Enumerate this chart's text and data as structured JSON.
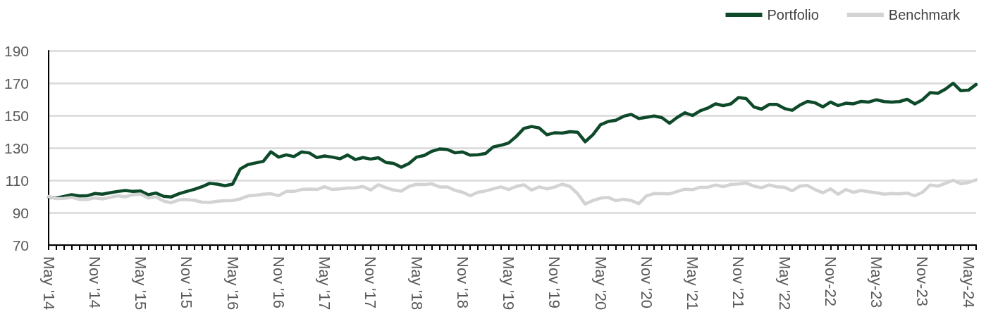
{
  "chart_data": {
    "type": "line",
    "categories": [
      "May '14",
      null,
      null,
      null,
      null,
      null,
      "Nov '14",
      null,
      null,
      null,
      null,
      null,
      "May '15",
      null,
      null,
      null,
      null,
      null,
      "Nov '15",
      null,
      null,
      null,
      null,
      null,
      "May '16",
      null,
      null,
      null,
      null,
      null,
      "Nov '16",
      null,
      null,
      null,
      null,
      null,
      "May '17",
      null,
      null,
      null,
      null,
      null,
      "Nov '17",
      null,
      null,
      null,
      null,
      null,
      "May '18",
      null,
      null,
      null,
      null,
      null,
      "Nov '18",
      null,
      null,
      null,
      null,
      null,
      "May '19",
      null,
      null,
      null,
      null,
      null,
      "Nov '19",
      null,
      null,
      null,
      null,
      null,
      "May '20",
      null,
      null,
      null,
      null,
      null,
      "Nov '20",
      null,
      null,
      null,
      null,
      null,
      "May '21",
      null,
      null,
      null,
      null,
      null,
      "Nov '21",
      null,
      null,
      null,
      null,
      null,
      "May '22",
      null,
      null,
      null,
      null,
      null,
      "Nov-22",
      null,
      null,
      null,
      null,
      null,
      "May-23",
      null,
      null,
      null,
      null,
      null,
      "Nov-23",
      null,
      null,
      null,
      null,
      null,
      "May-24",
      null
    ],
    "series": [
      {
        "name": "Portfolio",
        "color": "#0e4a2a",
        "values": [
          99.7,
          99,
          100,
          101.1,
          100.3,
          100.4,
          101.8,
          101.4,
          102.3,
          103.1,
          103.7,
          103.1,
          103.4,
          101.1,
          102.1,
          100.1,
          99.7,
          101.7,
          103.1,
          104.4,
          106,
          108.1,
          107.6,
          106.6,
          107.6,
          117,
          119.7,
          120.7,
          121.7,
          127.6,
          124.3,
          125.7,
          124.6,
          127.5,
          126.9,
          124,
          125,
          124.3,
          123.3,
          125.6,
          122.8,
          124,
          123.1,
          123.9,
          121,
          120.4,
          118.1,
          120.3,
          124.3,
          125.3,
          127.9,
          129.3,
          129,
          127,
          127.5,
          125.5,
          125.8,
          126.5,
          130.6,
          131.6,
          133,
          137,
          142,
          143.2,
          142.3,
          138.1,
          139.3,
          139.1,
          140,
          139.7,
          133.8,
          138.1,
          144.3,
          146.3,
          147.1,
          149.5,
          150.7,
          148.1,
          148.9,
          149.7,
          148.7,
          145.2,
          148.8,
          151.7,
          150,
          152.9,
          154.6,
          157.2,
          156.1,
          157.2,
          161.1,
          160.4,
          155.3,
          153.9,
          156.8,
          156.8,
          154.3,
          153.2,
          156.4,
          158.7,
          157.8,
          155.3,
          158.3,
          156.1,
          157.6,
          157.2,
          158.7,
          158.3,
          159.7,
          158.6,
          158.3,
          158.6,
          160,
          157.2,
          159.7,
          164.1,
          163.7,
          166.3,
          169.9,
          165.3,
          165.6,
          169.2
        ]
      },
      {
        "name": "Benchmark",
        "color": "#d3d3d3",
        "values": [
          100,
          98.7,
          98.8,
          99.4,
          98.2,
          98.1,
          99.1,
          98.5,
          99.4,
          100.4,
          99.8,
          101.1,
          101.4,
          99,
          99.7,
          97.2,
          96.1,
          97.9,
          98.1,
          97.6,
          96.5,
          96.3,
          97.1,
          97.4,
          97.5,
          98.5,
          100.3,
          100.8,
          101.4,
          101.7,
          100.5,
          103.1,
          103.1,
          104.3,
          104.6,
          104.3,
          106,
          104.3,
          104.7,
          105.2,
          105.3,
          106.2,
          104,
          107.2,
          105.5,
          104,
          103.3,
          106.2,
          107.5,
          107.4,
          107.8,
          105.9,
          105.9,
          103.8,
          102.6,
          100.4,
          102.6,
          103.4,
          104.7,
          105.9,
          104.3,
          106.2,
          107.2,
          104,
          105.9,
          104.7,
          105.8,
          107.6,
          106.2,
          101.8,
          95.3,
          97.5,
          99,
          99.4,
          97.4,
          98.3,
          97.5,
          95.6,
          100.4,
          101.8,
          101.7,
          101.6,
          103.1,
          104.5,
          104.2,
          105.7,
          105.7,
          107.1,
          106.1,
          107.4,
          107.7,
          108.3,
          106.4,
          105.4,
          107.1,
          106,
          105.7,
          103.5,
          106.4,
          106.8,
          104.2,
          102.3,
          104.7,
          101.4,
          104.3,
          102.6,
          103.7,
          102.9,
          102.3,
          101.4,
          101.8,
          101.6,
          102.1,
          100.4,
          102.6,
          107.1,
          106.4,
          108.1,
          110,
          107.8,
          108.6,
          110.3
        ]
      }
    ],
    "ylim": [
      70,
      190
    ],
    "yticks": [
      70,
      90,
      110,
      130,
      150,
      170,
      190
    ],
    "grid": "y",
    "legend": "top right",
    "marker": "none",
    "line_style": "solid"
  }
}
